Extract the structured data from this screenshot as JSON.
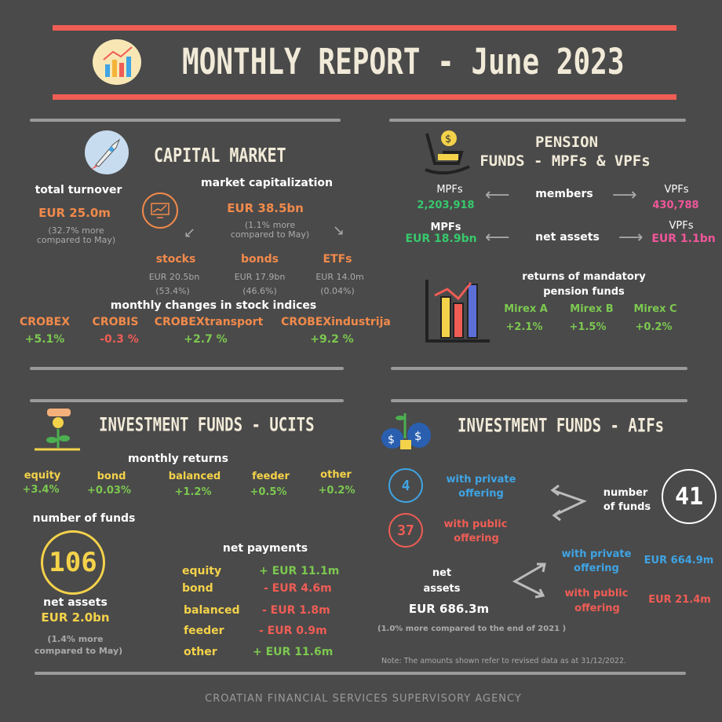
{
  "header": {
    "title": "MONTHLY REPORT - June 2023"
  },
  "colors": {
    "accent_red": "#ef5d55",
    "orange": "#f18a4b",
    "green": "#7cc850",
    "pink": "#f0579a",
    "mpf_green": "#37c96d",
    "yellow": "#f4d24a",
    "blue": "#3fa4e4",
    "background": "#4a4a4a"
  },
  "capital_market": {
    "title": "CAPITAL MARKET",
    "turnover_label": "total turnover",
    "turnover_value": "EUR 25.0m",
    "turnover_note1": "(32.7% more",
    "turnover_note2": "compared to May)",
    "cap_label": "market capitalization",
    "cap_value": "EUR 38.5bn",
    "cap_note1": "(1.1% more",
    "cap_note2": "compared to May)",
    "parts": [
      {
        "label": "stocks",
        "value": "EUR 20.5bn",
        "share": "(53.4%)"
      },
      {
        "label": "bonds",
        "value": "EUR 17.9bn",
        "share": "(46.6%)"
      },
      {
        "label": "ETFs",
        "value": "EUR 14.0m",
        "share": "(0.04%)"
      }
    ],
    "indices_title": "monthly changes in stock indices",
    "indices": [
      {
        "name": "CROBEX",
        "change": "+5.1%"
      },
      {
        "name": "CROBIS",
        "change": "-0.3 %"
      },
      {
        "name": "CROBEXtransport",
        "change": "+2.7 %"
      },
      {
        "name": "CROBEXindustrija",
        "change": "+9.2 %"
      }
    ]
  },
  "pension": {
    "title1": "PENSION",
    "title2": "FUNDS - MPFs & VPFs",
    "mpf_label": "MPFs",
    "members_label": "members",
    "vpf_label": "VPFs",
    "mpf_members": "2,203,918",
    "vpf_members": "430,788",
    "mpf_label2": "MPFs",
    "net_assets_label": "net assets",
    "vpf_label2": "VPFs",
    "mpf_assets": "EUR 18.9bn",
    "vpf_assets": "EUR 1.1bn",
    "returns_title1": "returns of mandatory",
    "returns_title2": "pension funds",
    "mirex": [
      {
        "name": "Mirex A",
        "value": "+2.1%"
      },
      {
        "name": "Mirex B",
        "value": "+1.5%"
      },
      {
        "name": "Mirex C",
        "value": "+0.2%"
      }
    ]
  },
  "ucits": {
    "title": "INVESTMENT FUNDS - UCITS",
    "returns_title": "monthly returns",
    "returns": [
      {
        "name": "equity",
        "value": "+3.4%"
      },
      {
        "name": "bond",
        "value": "+0.03%"
      },
      {
        "name": "balanced",
        "value": "+1.2%"
      },
      {
        "name": "feeder",
        "value": "+0.5%"
      },
      {
        "name": "other",
        "value": "+0.2%"
      }
    ],
    "funds_label": "number of funds",
    "funds_count": "106",
    "net_assets_label": "net assets",
    "net_assets_value": "EUR 2.0bn",
    "net_note1": "(1.4% more",
    "net_note2": "compared to May)",
    "payments_title": "net payments",
    "payments": [
      {
        "name": "equity",
        "value": "+ EUR 11.1m"
      },
      {
        "name": "bond",
        "value": "- EUR 4.6m"
      },
      {
        "name": "balanced",
        "value": "- EUR 1.8m"
      },
      {
        "name": "feeder",
        "value": "- EUR 0.9m"
      },
      {
        "name": "other",
        "value": "+ EUR 11.6m"
      }
    ]
  },
  "aifs": {
    "title": "INVESTMENT FUNDS - AIFs",
    "private_count": "4",
    "private_label1": "with private",
    "private_label2": "offering",
    "public_count": "37",
    "public_label1": "with  public",
    "public_label2": "offering",
    "funds_label1": "number",
    "funds_label2": "of funds",
    "funds_count": "41",
    "net_label1": "net",
    "net_label2": "assets",
    "net_value": "EUR 686.3m",
    "private_assets_label1": "with private",
    "private_assets_label2": "offering",
    "private_assets": "EUR 664.9m",
    "public_assets_label1": "with  public",
    "public_assets_label2": "offering",
    "public_assets": "EUR 21.4m",
    "net_note": "(1.0% more compared to the end of 2021 )",
    "footnote": "Note: The amounts shown refer to revised data as at 31/12/2022."
  },
  "footer": {
    "agency": "CROATIAN FINANCIAL SERVICES SUPERVISORY AGENCY"
  }
}
